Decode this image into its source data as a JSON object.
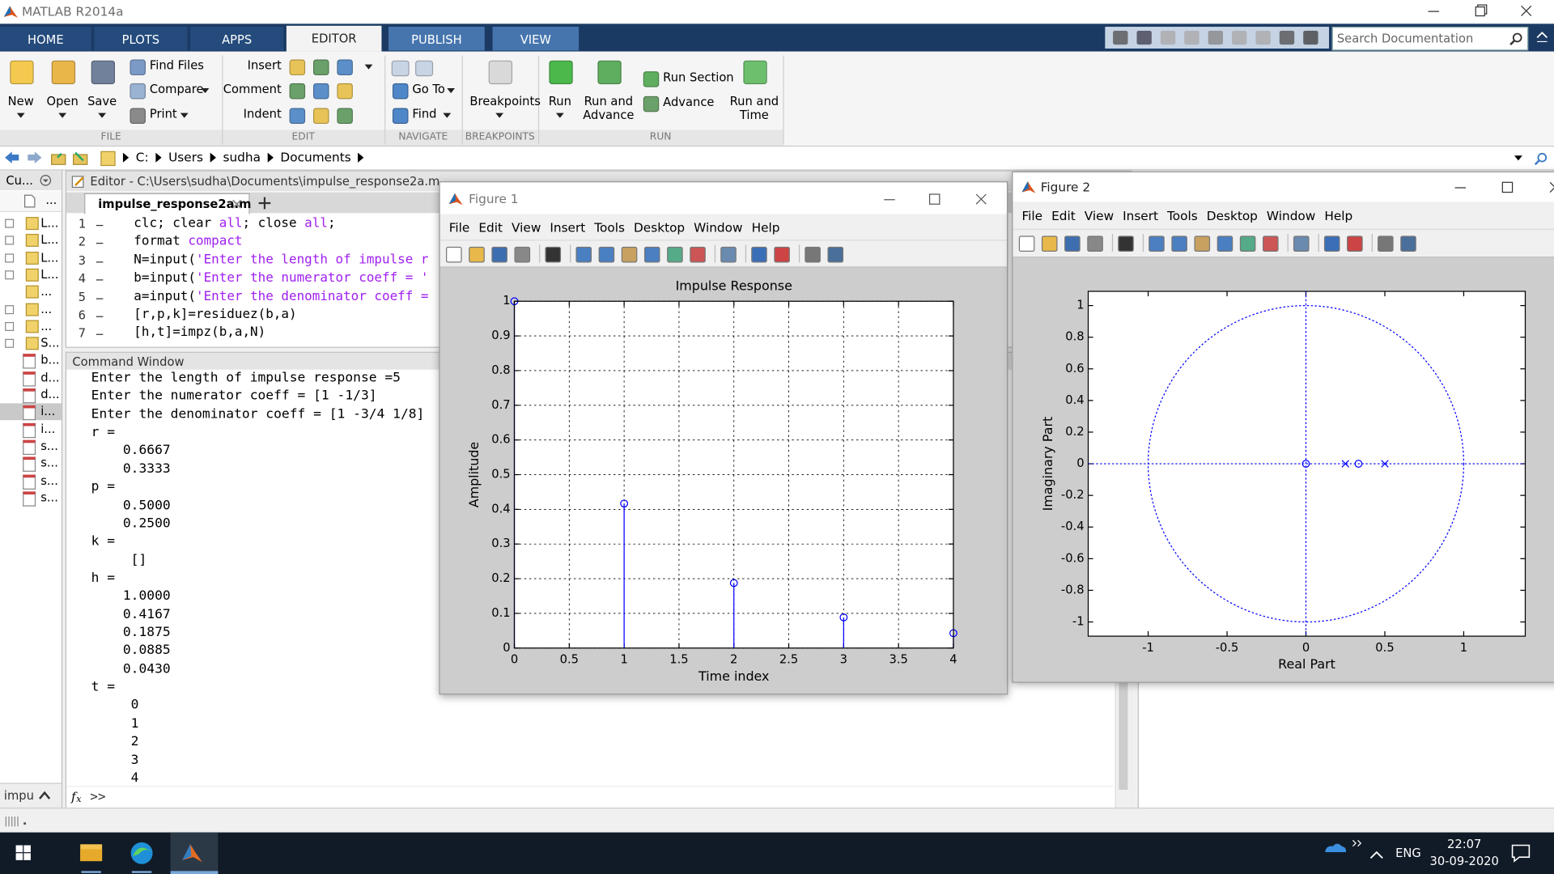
{
  "window_title": "MATLAB R2014a",
  "ribbon_tabs": [
    "HOME",
    "PLOTS",
    "APPS",
    "EDITOR",
    "PUBLISH",
    "VIEW"
  ],
  "search_placeholder": "Search Documentation",
  "toolstrip": {
    "sections": [
      "FILE",
      "EDIT",
      "NAVIGATE",
      "BREAKPOINTS",
      "RUN"
    ],
    "new": "New",
    "open": "Open",
    "save": "Save",
    "find_files": "Find Files",
    "compare": "Compare",
    "print": "Print",
    "insert": "Insert",
    "comment": "Comment",
    "indent": "Indent",
    "go_to": "Go To",
    "find": "Find",
    "breakpoints": "Breakpoints",
    "run": "Run",
    "run_and_advance": "Run and Advance",
    "run_section": "Run Section",
    "advance": "Advance",
    "run_and_time": "Run and Time"
  },
  "address_path": [
    "C:",
    "Users",
    "sudha",
    "Documents"
  ],
  "current_folder": {
    "title": "Cu...",
    "column": "...",
    "items": [
      "L...",
      "L...",
      "L...",
      "L...",
      "...",
      "...",
      "...",
      "S...",
      "b...",
      "d...",
      "d...",
      "i...",
      "i...",
      "s...",
      "s...",
      "s...",
      "s..."
    ],
    "filter": "impu"
  },
  "editor": {
    "title": "Editor - C:\\Users\\sudha\\Documents\\impulse_response2a.m",
    "tab": "impulse_response2a.m",
    "lines": [
      {
        "number": 1,
        "code": "clc; clear all; close all;"
      },
      {
        "number": 2,
        "code": "format compact"
      },
      {
        "number": 3,
        "code": "N=input('Enter the length of impulse r"
      },
      {
        "number": 4,
        "code": "b=input('Enter the numerator coeff = '"
      },
      {
        "number": 5,
        "code": "a=input('Enter the denominator coeff ="
      },
      {
        "number": 6,
        "code": "[r,p,k]=residuez(b,a)"
      },
      {
        "number": 7,
        "code": "[h,t]=impz(b,a,N)"
      }
    ]
  },
  "command_window": {
    "title": "Command Window",
    "lines": [
      "Enter the length of impulse response =5",
      "Enter the numerator coeff = [1 -1/3]",
      "Enter the denominator coeff = [1 -3/4 1/8]",
      "r =",
      "    0.6667",
      "    0.3333",
      "p =",
      "    0.5000",
      "    0.2500",
      "k =",
      "     []",
      "h =",
      "    1.0000",
      "    0.4167",
      "    0.1875",
      "    0.0885",
      "    0.0430",
      "t =",
      "     0",
      "     1",
      "     2",
      "     3",
      "     4"
    ],
    "prompt": ">>"
  },
  "figure1": {
    "title": "Figure 1",
    "menu": [
      "File",
      "Edit",
      "View",
      "Insert",
      "Tools",
      "Desktop",
      "Window",
      "Help"
    ],
    "chart_data": {
      "type": "stem",
      "title": "Impulse Response",
      "xlabel": "Time index",
      "ylabel": "Amplitude",
      "x": [
        0,
        1,
        2,
        3,
        4
      ],
      "values": [
        1,
        0.4167,
        0.1875,
        0.0885,
        0.043
      ],
      "color": "#0000ff",
      "xlim": [
        0,
        4
      ],
      "ylim": [
        0,
        1
      ],
      "xticks": [
        0,
        0.5,
        1,
        1.5,
        2,
        2.5,
        3,
        3.5,
        4
      ],
      "yticks": [
        0,
        0.1,
        0.2,
        0.3,
        0.4,
        0.5,
        0.6,
        0.7,
        0.8,
        0.9,
        1
      ],
      "grid": true
    }
  },
  "figure2": {
    "title": "Figure 2",
    "menu": [
      "File",
      "Edit",
      "View",
      "Insert",
      "Tools",
      "Desktop",
      "Window",
      "Help"
    ],
    "chart_data": {
      "type": "pole-zero",
      "xlabel": "Real Part",
      "ylabel": "Imaginary Part",
      "zeros": {
        "x": [
          0,
          0.3333
        ],
        "y": [
          0,
          0
        ]
      },
      "poles": {
        "x": [
          0.25,
          0.5
        ],
        "y": [
          0,
          0
        ]
      },
      "color": "#0000ff",
      "xlim": [
        -1.38,
        1.39
      ],
      "ylim": [
        -1.09,
        1.09
      ],
      "xticks": [
        -1,
        -0.5,
        0,
        0.5,
        1
      ],
      "yticks": [
        -1,
        -0.8,
        -0.6,
        -0.4,
        -0.2,
        0,
        0.2,
        0.4,
        0.6,
        0.8,
        1
      ],
      "grid": false
    }
  },
  "taskbar": {
    "language": "ENG",
    "time": "22:07",
    "date": "30-09-2020"
  }
}
